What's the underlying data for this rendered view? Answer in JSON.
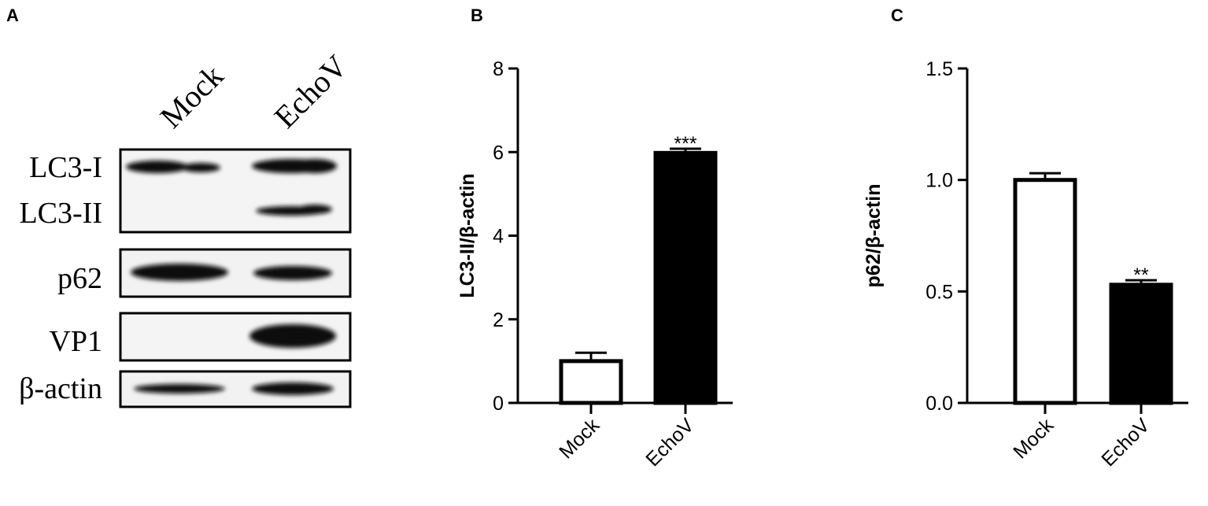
{
  "blot": {
    "panel_label": "A",
    "lanes": [
      "Mock",
      "EchoV"
    ],
    "bands": [
      "LC3-I",
      "LC3-II",
      "p62",
      "VP1",
      "β-actin"
    ]
  },
  "chart_data": [
    {
      "type": "bar",
      "panel_label": "B",
      "y_label": "LC3-II/β-actin",
      "categories": [
        "Mock",
        "EchoV"
      ],
      "values": [
        1.0,
        5.98
      ],
      "errors": [
        0.2,
        0.1
      ],
      "colors": [
        "#ffffff",
        "#000000"
      ],
      "significance": [
        null,
        "***"
      ],
      "ylim": [
        0,
        8
      ],
      "yticks": [
        0,
        2,
        4,
        6,
        8
      ]
    },
    {
      "type": "bar",
      "panel_label": "C",
      "y_label": "p62/β-actin",
      "categories": [
        "Mock",
        "EchoV"
      ],
      "values": [
        1.0,
        0.53
      ],
      "errors": [
        0.03,
        0.02
      ],
      "colors": [
        "#ffffff",
        "#000000"
      ],
      "significance": [
        null,
        "**"
      ],
      "ylim": [
        0,
        1.5
      ],
      "yticks": [
        {
          "value": 0,
          "label": "0.0"
        },
        {
          "value": 0.5,
          "label": "0.5"
        },
        {
          "value": 1,
          "label": "1.0"
        },
        {
          "value": 1.5,
          "label": "1.5"
        }
      ]
    }
  ]
}
